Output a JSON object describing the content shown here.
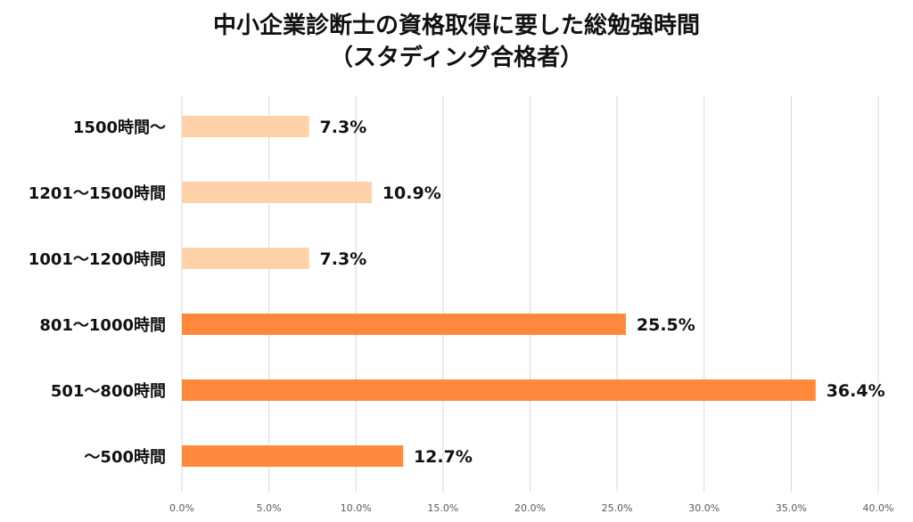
{
  "chart_data": {
    "type": "bar",
    "orientation": "horizontal",
    "title": "中小企業診断士の資格取得に要した総勉強時間",
    "subtitle": "（スタディング合格者）",
    "categories": [
      "1500時間〜",
      "1201〜1500時間",
      "1001〜1200時間",
      "801〜1000時間",
      "501〜800時間",
      "〜500時間"
    ],
    "values": [
      7.3,
      10.9,
      7.3,
      25.5,
      36.4,
      12.7
    ],
    "data_labels": [
      "7.3%",
      "10.9%",
      "7.3%",
      "25.5%",
      "36.4%",
      "12.7%"
    ],
    "xlim": [
      0,
      40
    ],
    "xticks": [
      0,
      5,
      10,
      15,
      20,
      25,
      30,
      35,
      40
    ],
    "xtick_labels": [
      "0.0%",
      "5.0%",
      "10.0%",
      "15.0%",
      "20.0%",
      "25.0%",
      "30.0%",
      "35.0%",
      "40.0%"
    ],
    "xlabel": "",
    "ylabel": "",
    "grid": true,
    "bar_colors": [
      "#FFD1A8",
      "#FFD1A8",
      "#FFD1A8",
      "#FF883D",
      "#FF883D",
      "#FF883D"
    ]
  }
}
